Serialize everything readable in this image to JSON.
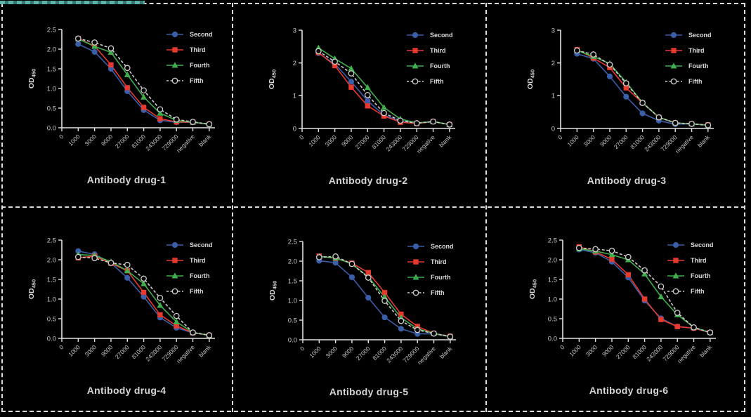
{
  "figure": {
    "background": "#000000",
    "border_color": "#dcdcdc",
    "highlight_color": "#5ab4aa",
    "axis_color": "#e2e2e2",
    "ylabel": {
      "base": "OD",
      "subscript": "450"
    }
  },
  "series_style": [
    {
      "name": "Second",
      "marker": "circle",
      "color": "#3b5ea9",
      "dashed": false
    },
    {
      "name": "Third",
      "marker": "square",
      "color": "#e8392e",
      "dashed": false
    },
    {
      "name": "Fourth",
      "marker": "triangle",
      "color": "#3fae4c",
      "dashed": false
    },
    {
      "name": "Fifth",
      "marker": "open-circle",
      "color": "#cccccc",
      "dashed": true
    }
  ],
  "chart_data": [
    {
      "type": "line",
      "title": "Antibody drug-1",
      "ylabel": "OD450",
      "ylim": [
        0,
        2.5
      ],
      "yticks": [
        "0.0",
        "0.5",
        "1.0",
        "1.5",
        "2.0",
        "2.5"
      ],
      "origin_label": "0",
      "legend_position": "top-right",
      "grid": false,
      "categories": [
        "1000",
        "3000",
        "9000",
        "27000",
        "81000",
        "243000",
        "729000",
        "negative",
        "blank"
      ],
      "series": [
        {
          "name": "Second",
          "values": [
            2.13,
            1.93,
            1.5,
            0.93,
            0.45,
            0.19,
            0.14,
            0.14,
            0.09
          ]
        },
        {
          "name": "Third",
          "values": [
            2.27,
            2.08,
            1.6,
            1.02,
            0.52,
            0.23,
            0.15,
            0.14,
            0.09
          ]
        },
        {
          "name": "Fourth",
          "values": [
            2.26,
            2.07,
            1.92,
            1.35,
            0.78,
            0.37,
            0.19,
            0.14,
            0.09
          ]
        },
        {
          "name": "Fifth",
          "values": [
            2.27,
            2.17,
            2.02,
            1.52,
            0.95,
            0.47,
            0.21,
            0.15,
            0.09
          ]
        }
      ]
    },
    {
      "type": "line",
      "title": "Antibody drug-2",
      "ylabel": "OD450",
      "ylim": [
        0,
        3
      ],
      "yticks": [
        "0",
        "1",
        "2",
        "3"
      ],
      "origin_label": "0",
      "legend_position": "top-right",
      "grid": false,
      "categories": [
        "1000",
        "3000",
        "9000",
        "27000",
        "81000",
        "243000",
        "729000",
        "negative",
        "blank"
      ],
      "series": [
        {
          "name": "Second",
          "values": [
            2.3,
            1.97,
            1.43,
            0.84,
            0.41,
            0.22,
            0.16,
            0.21,
            0.12
          ]
        },
        {
          "name": "Third",
          "values": [
            2.32,
            1.92,
            1.26,
            0.69,
            0.38,
            0.19,
            0.15,
            0.21,
            0.12
          ]
        },
        {
          "name": "Fourth",
          "values": [
            2.46,
            2.13,
            1.83,
            1.25,
            0.64,
            0.29,
            0.17,
            0.21,
            0.12
          ]
        },
        {
          "name": "Fifth",
          "values": [
            2.36,
            2.04,
            1.68,
            1.02,
            0.47,
            0.24,
            0.16,
            0.21,
            0.12
          ]
        }
      ]
    },
    {
      "type": "line",
      "title": "Antibody drug-3",
      "ylabel": "OD450",
      "ylim": [
        0,
        3
      ],
      "yticks": [
        "0",
        "1",
        "2",
        "3"
      ],
      "origin_label": "0",
      "legend_position": "top-right",
      "grid": false,
      "categories": [
        "1000",
        "3000",
        "9000",
        "27000",
        "81000",
        "243000",
        "729000",
        "negative",
        "blank"
      ],
      "series": [
        {
          "name": "Second",
          "values": [
            2.28,
            2.13,
            1.59,
            0.97,
            0.46,
            0.24,
            0.13,
            0.14,
            0.1
          ]
        },
        {
          "name": "Third",
          "values": [
            2.41,
            2.15,
            1.86,
            1.24,
            0.78,
            0.34,
            0.17,
            0.14,
            0.11
          ]
        },
        {
          "name": "Fourth",
          "values": [
            2.38,
            2.2,
            1.98,
            1.41,
            0.79,
            0.34,
            0.17,
            0.14,
            0.1
          ]
        },
        {
          "name": "Fifth",
          "values": [
            2.38,
            2.26,
            1.95,
            1.38,
            0.78,
            0.34,
            0.17,
            0.14,
            0.1
          ]
        }
      ]
    },
    {
      "type": "line",
      "title": "Antibody drug-4",
      "ylabel": "OD450",
      "ylim": [
        0,
        2.5
      ],
      "yticks": [
        "0.0",
        "0.5",
        "1.0",
        "1.5",
        "2.0",
        "2.5"
      ],
      "origin_label": "0",
      "legend_position": "top-right",
      "grid": false,
      "categories": [
        "1000",
        "3000",
        "9000",
        "27000",
        "81000",
        "243000",
        "729000",
        "negative",
        "blank"
      ],
      "series": [
        {
          "name": "Second",
          "values": [
            2.22,
            2.14,
            1.92,
            1.54,
            1.06,
            0.53,
            0.27,
            0.14,
            0.08
          ]
        },
        {
          "name": "Third",
          "values": [
            2.05,
            2.09,
            1.91,
            1.72,
            1.17,
            0.6,
            0.32,
            0.14,
            0.08
          ]
        },
        {
          "name": "Fourth",
          "values": [
            2.13,
            2.11,
            1.95,
            1.72,
            1.39,
            0.84,
            0.42,
            0.15,
            0.08
          ]
        },
        {
          "name": "Fifth",
          "values": [
            2.07,
            2.04,
            1.92,
            1.87,
            1.52,
            1.03,
            0.57,
            0.15,
            0.08
          ]
        }
      ]
    },
    {
      "type": "line",
      "title": "Antibody drug-5",
      "ylabel": "OD450",
      "ylim": [
        0,
        2.5
      ],
      "yticks": [
        "0.0",
        "0.5",
        "1.0",
        "1.5",
        "2.0",
        "2.5"
      ],
      "origin_label": "0",
      "legend_position": "top-right",
      "grid": false,
      "categories": [
        "1000",
        "3000",
        "9000",
        "27000",
        "81000",
        "243000",
        "729000",
        "negative",
        "blank"
      ],
      "series": [
        {
          "name": "Second",
          "values": [
            2.01,
            1.96,
            1.59,
            1.07,
            0.57,
            0.28,
            0.15,
            0.15,
            0.08
          ]
        },
        {
          "name": "Third",
          "values": [
            2.13,
            2.07,
            1.95,
            1.71,
            1.2,
            0.65,
            0.34,
            0.16,
            0.09
          ]
        },
        {
          "name": "Fourth",
          "values": [
            2.12,
            2.08,
            1.93,
            1.6,
            1.09,
            0.56,
            0.28,
            0.16,
            0.08
          ]
        },
        {
          "name": "Fifth",
          "values": [
            2.1,
            2.12,
            1.93,
            1.58,
            0.99,
            0.48,
            0.25,
            0.16,
            0.08
          ]
        }
      ]
    },
    {
      "type": "line",
      "title": "Antibody drug-6",
      "ylabel": "OD450",
      "ylim": [
        0,
        2.5
      ],
      "yticks": [
        "0.0",
        "0.5",
        "1.0",
        "1.5",
        "2.0",
        "2.5"
      ],
      "origin_label": "0",
      "legend_position": "top-right",
      "grid": false,
      "categories": [
        "1000",
        "3000",
        "9000",
        "27000",
        "81000",
        "243000",
        "729000",
        "negative",
        "blank"
      ],
      "series": [
        {
          "name": "Second",
          "values": [
            2.26,
            2.18,
            1.95,
            1.55,
            0.96,
            0.51,
            0.3,
            0.26,
            0.15
          ]
        },
        {
          "name": "Third",
          "values": [
            2.33,
            2.2,
            2.01,
            1.62,
            1.0,
            0.48,
            0.3,
            0.26,
            0.15
          ]
        },
        {
          "name": "Fourth",
          "values": [
            2.28,
            2.22,
            2.13,
            2.0,
            1.64,
            1.06,
            0.6,
            0.28,
            0.15
          ]
        },
        {
          "name": "Fifth",
          "values": [
            2.3,
            2.27,
            2.23,
            2.07,
            1.73,
            1.32,
            0.65,
            0.28,
            0.15
          ]
        }
      ]
    }
  ]
}
